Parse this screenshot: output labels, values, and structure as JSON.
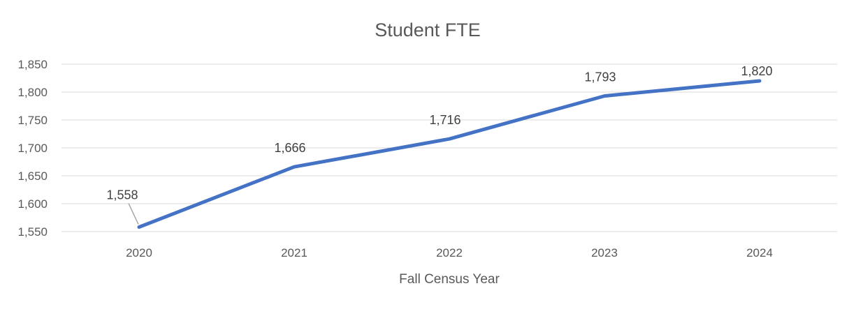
{
  "chart_data": {
    "type": "line",
    "title": "Student FTE",
    "xlabel": "Fall Census Year",
    "ylabel": "",
    "categories": [
      "2020",
      "2021",
      "2022",
      "2023",
      "2024"
    ],
    "series": [
      {
        "values": [
          1558,
          1666,
          1716,
          1793,
          1820
        ],
        "color": "#4472c4"
      }
    ],
    "data_labels": [
      "1,558",
      "1,666",
      "1,716",
      "1,793",
      "1,820"
    ],
    "ylim": [
      1550,
      1850
    ],
    "yticks": [
      1550,
      1600,
      1650,
      1700,
      1750,
      1800,
      1850
    ],
    "ytick_labels": [
      "1,550",
      "1,600",
      "1,650",
      "1,700",
      "1,750",
      "1,800",
      "1,850"
    ],
    "grid": true,
    "legend": "none",
    "colors": {
      "line": "#4472c4",
      "grid": "#d9d9d9",
      "text": "#595959",
      "leader": "#a6a6a6"
    }
  }
}
